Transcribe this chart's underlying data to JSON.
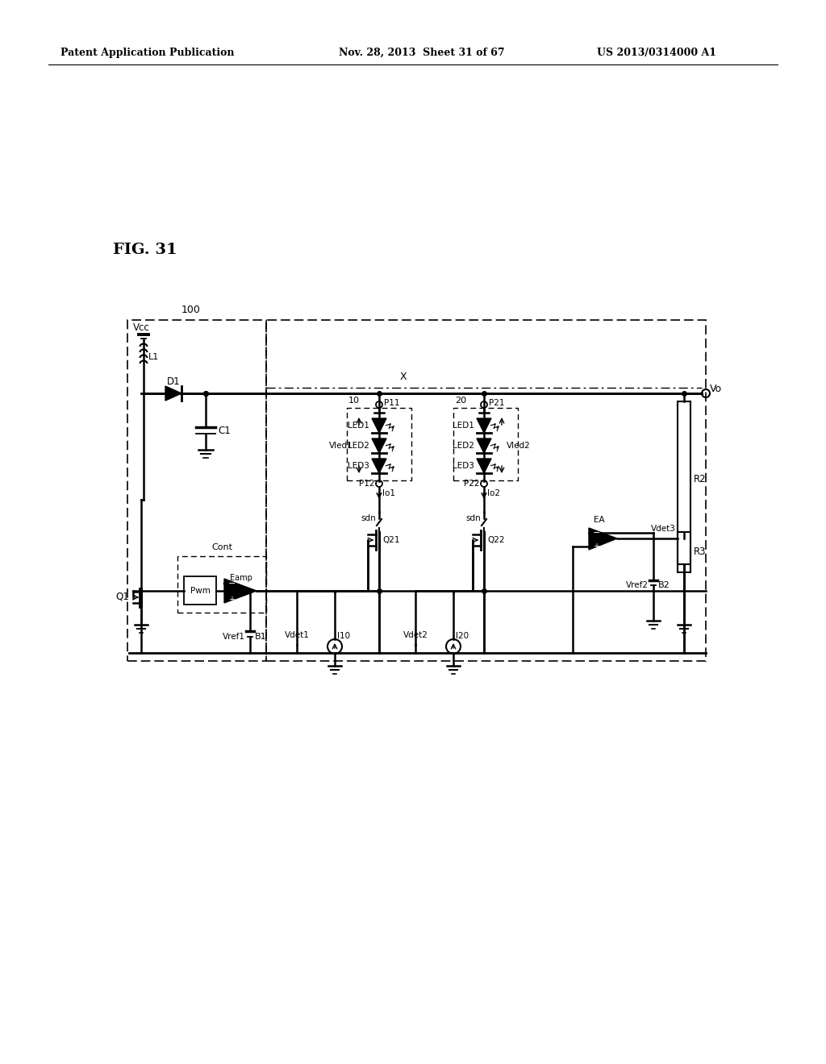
{
  "title_left": "Patent Application Publication",
  "title_mid": "Nov. 28, 2013  Sheet 31 of 67",
  "title_right": "US 2013/0314000 A1",
  "fig_label": "FIG. 31",
  "bg_color": "#ffffff"
}
